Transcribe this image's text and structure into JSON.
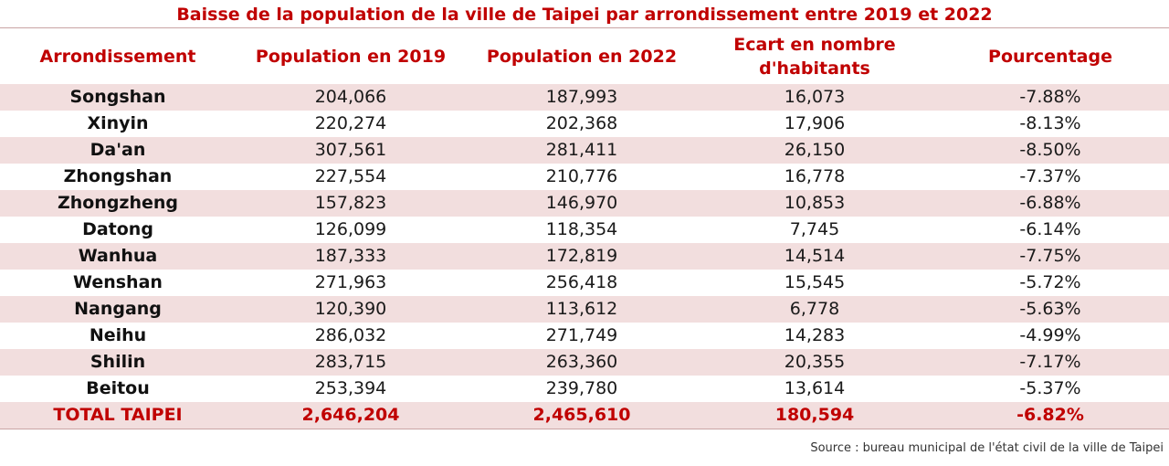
{
  "title": "Baisse de la population de la ville de Taipei par arrondissement entre 2019 et 2022",
  "headers": {
    "district": "Arrondissement",
    "pop2019": "Population en 2019",
    "pop2022": "Population en 2022",
    "gap_line1": "Ecart en nombre",
    "gap_line2": "d'habitants",
    "percent": "Pourcentage"
  },
  "rows": [
    {
      "name": "Songshan",
      "pop2019": "204,066",
      "pop2022": "187,993",
      "gap": "16,073",
      "percent": "-7.88%"
    },
    {
      "name": "Xinyin",
      "pop2019": "220,274",
      "pop2022": "202,368",
      "gap": "17,906",
      "percent": "-8.13%"
    },
    {
      "name": "Da'an",
      "pop2019": "307,561",
      "pop2022": "281,411",
      "gap": "26,150",
      "percent": "-8.50%"
    },
    {
      "name": "Zhongshan",
      "pop2019": "227,554",
      "pop2022": "210,776",
      "gap": "16,778",
      "percent": "-7.37%"
    },
    {
      "name": "Zhongzheng",
      "pop2019": "157,823",
      "pop2022": "146,970",
      "gap": "10,853",
      "percent": "-6.88%"
    },
    {
      "name": "Datong",
      "pop2019": "126,099",
      "pop2022": "118,354",
      "gap": "7,745",
      "percent": "-6.14%"
    },
    {
      "name": "Wanhua",
      "pop2019": "187,333",
      "pop2022": "172,819",
      "gap": "14,514",
      "percent": "-7.75%"
    },
    {
      "name": "Wenshan",
      "pop2019": "271,963",
      "pop2022": "256,418",
      "gap": "15,545",
      "percent": "-5.72%"
    },
    {
      "name": "Nangang",
      "pop2019": "120,390",
      "pop2022": "113,612",
      "gap": "6,778",
      "percent": "-5.63%"
    },
    {
      "name": "Neihu",
      "pop2019": "286,032",
      "pop2022": "271,749",
      "gap": "14,283",
      "percent": "-4.99%"
    },
    {
      "name": "Shilin",
      "pop2019": "283,715",
      "pop2022": "263,360",
      "gap": "20,355",
      "percent": "-7.17%"
    },
    {
      "name": "Beitou",
      "pop2019": "253,394",
      "pop2022": "239,780",
      "gap": "13,614",
      "percent": "-5.37%"
    }
  ],
  "total": {
    "name": "TOTAL TAIPEI",
    "pop2019": "2,646,204",
    "pop2022": "2,465,610",
    "gap": "180,594",
    "percent": "-6.82%"
  },
  "source": "Source : bureau municipal de l'état civil de la ville de Taipei",
  "colors": {
    "accent": "#c00000",
    "row_band": "#f2dede",
    "rule": "#c9a4a4"
  }
}
